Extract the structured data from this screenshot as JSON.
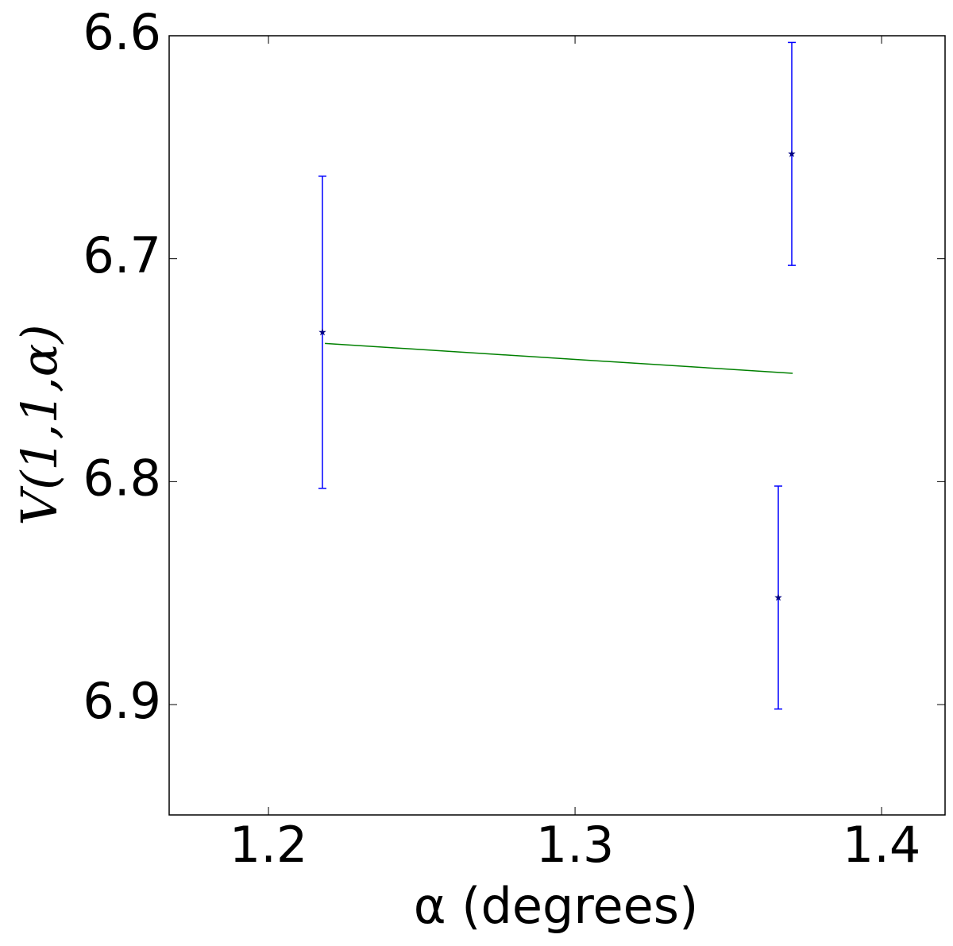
{
  "chart_data": {
    "type": "errorbar",
    "xlabel": "α (degrees)",
    "ylabel": "V(1,1,α)",
    "xlim": [
      1.1676,
      1.4207
    ],
    "ylim": [
      6.9495,
      6.6
    ],
    "xticks": [
      1.2,
      1.3,
      1.4
    ],
    "yticks": [
      6.6,
      6.7,
      6.8,
      6.9
    ],
    "series": [
      {
        "type": "errorbar",
        "color": "#0000ff",
        "marker_color": "#000080",
        "x": [
          1.2176,
          1.3707,
          1.3663
        ],
        "values": [
          6.733,
          6.653,
          6.852
        ],
        "errors": [
          0.07,
          0.05,
          0.05
        ]
      },
      {
        "type": "line",
        "color": "#008000",
        "x": [
          1.2184,
          1.371
        ],
        "values": [
          6.738,
          6.7514
        ]
      }
    ]
  }
}
